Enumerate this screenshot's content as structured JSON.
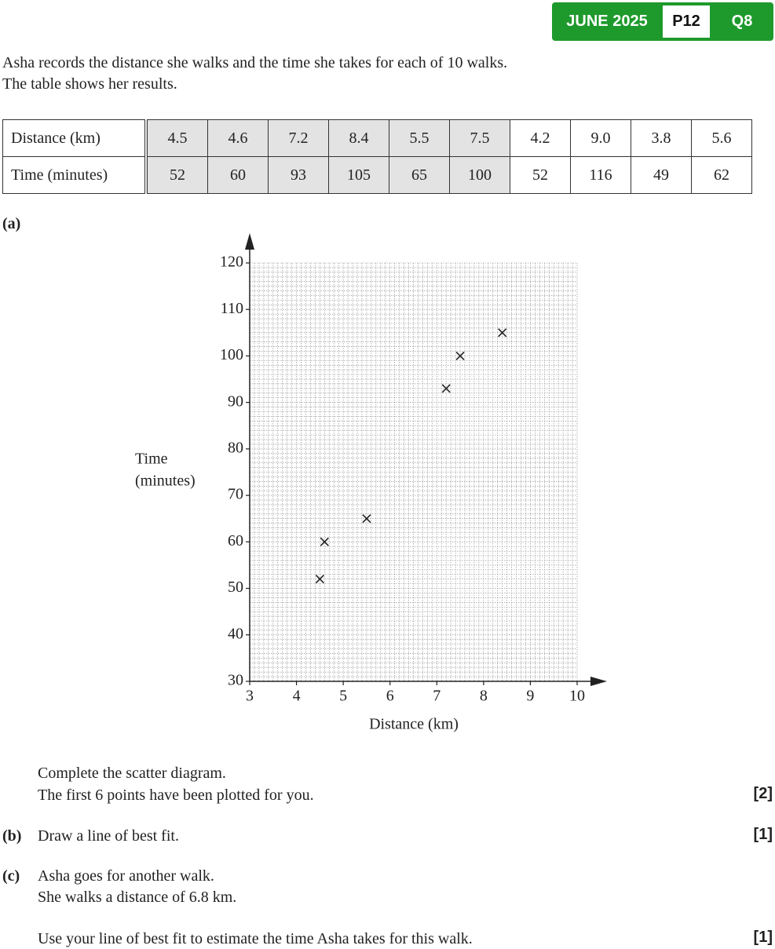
{
  "header": {
    "session": "JUNE 2025",
    "paper": "P12",
    "question": "Q8"
  },
  "intro": [
    "Asha records the distance she walks and the time she takes for each of 10 walks.",
    "The table shows her results."
  ],
  "table": {
    "rows": [
      [
        "Distance (km)",
        "4.5",
        "4.6",
        "7.2",
        "8.4",
        "5.5",
        "7.5",
        "4.2",
        "9.0",
        "3.8",
        "5.6"
      ],
      [
        "Time (minutes)",
        "52",
        "60",
        "93",
        "105",
        "65",
        "100",
        "52",
        "116",
        "49",
        "62"
      ]
    ]
  },
  "part_a": {
    "label": "(a)",
    "text": [
      "Complete the scatter diagram.",
      "The first 6 points have been plotted for you."
    ],
    "marks": "[2]"
  },
  "part_b": {
    "label": "(b)",
    "text": "Draw a line of best fit.",
    "marks": "[1]"
  },
  "part_c": {
    "label": "(c)",
    "text": [
      "Asha goes for another walk.",
      "She walks a distance of 6.8 km.",
      "Use your line of best fit to estimate the time Asha takes for this walk."
    ],
    "marks": "[1]"
  },
  "chart_data": {
    "type": "scatter",
    "x_label": "Distance (km)",
    "y_label": [
      "Time",
      "(minutes)"
    ],
    "x": [
      4.5,
      4.6,
      7.2,
      8.4,
      5.5,
      7.5
    ],
    "values": [
      52,
      60,
      93,
      105,
      65,
      100
    ],
    "xlim": [
      3,
      10
    ],
    "ylim": [
      30,
      120
    ],
    "xticks": [
      3,
      4,
      5,
      6,
      7,
      8,
      9,
      10
    ],
    "yticks": [
      30,
      40,
      50,
      60,
      70,
      80,
      90,
      100,
      110,
      120
    ],
    "grid": true,
    "color": "#222222"
  }
}
